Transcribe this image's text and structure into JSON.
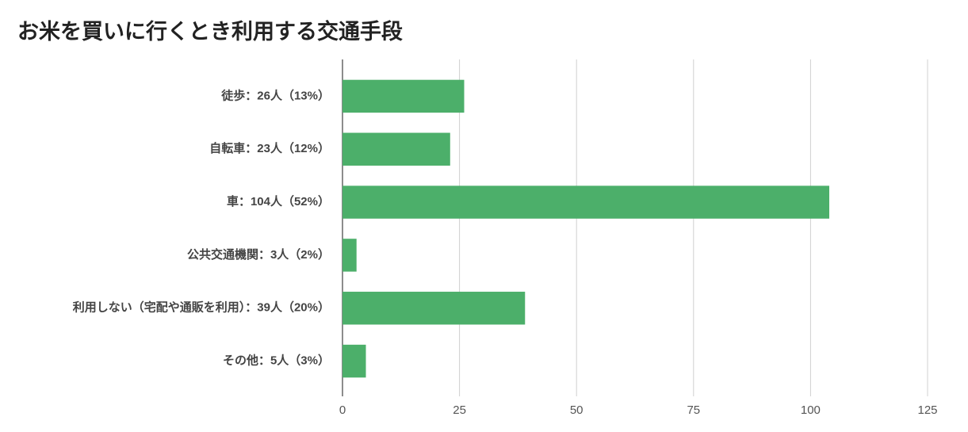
{
  "chart_data": {
    "type": "bar",
    "orientation": "horizontal",
    "title": "お米を買いに行くとき利用する交通手段",
    "categories": [
      "徒歩：26人（13%）",
      "自転車：23人（12%）",
      "車：104人（52%）",
      "公共交通機関：3人（2%）",
      "利用しない（宅配や通販を利用）：39人（20%）",
      "その他：5人（3%）"
    ],
    "values": [
      26,
      23,
      104,
      3,
      39,
      5
    ],
    "color": "#4caf6a",
    "xlim": [
      0,
      125
    ],
    "xticks": [
      0,
      25,
      50,
      75,
      100,
      125
    ],
    "grid": true
  }
}
